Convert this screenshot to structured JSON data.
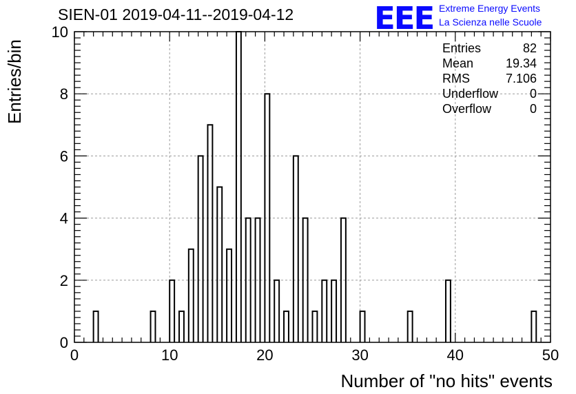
{
  "title": "SIEN-01 2019-04-11--2019-04-12",
  "logo": {
    "mark": "EEE",
    "line1": "Extreme Energy Events",
    "line2": "La Scienza nelle Scuole",
    "color": "#0a0aff"
  },
  "stats": [
    {
      "label": "Entries",
      "value": "82"
    },
    {
      "label": "Mean",
      "value": "19.34"
    },
    {
      "label": "RMS",
      "value": "7.106"
    },
    {
      "label": "Underflow",
      "value": "0"
    },
    {
      "label": "Overflow",
      "value": "0"
    }
  ],
  "chart_data": {
    "type": "bar",
    "title": "SIEN-01 2019-04-11--2019-04-12",
    "xlabel": "Number of \"no hits\" events",
    "ylabel": "Entries/bin",
    "xlim": [
      0,
      50
    ],
    "ylim": [
      0,
      10
    ],
    "bin_width": 0.5,
    "xticks": [
      0,
      10,
      20,
      30,
      40,
      50
    ],
    "yticks": [
      0,
      2,
      4,
      6,
      8,
      10
    ],
    "grid": true,
    "bins": [
      {
        "x": 2,
        "value": 1
      },
      {
        "x": 8,
        "value": 1
      },
      {
        "x": 10,
        "value": 2
      },
      {
        "x": 11,
        "value": 1
      },
      {
        "x": 12,
        "value": 3
      },
      {
        "x": 13,
        "value": 6
      },
      {
        "x": 14,
        "value": 7
      },
      {
        "x": 15,
        "value": 5
      },
      {
        "x": 16,
        "value": 3
      },
      {
        "x": 17,
        "value": 10
      },
      {
        "x": 18,
        "value": 4
      },
      {
        "x": 19,
        "value": 4
      },
      {
        "x": 20,
        "value": 8
      },
      {
        "x": 21,
        "value": 2
      },
      {
        "x": 22,
        "value": 1
      },
      {
        "x": 23,
        "value": 6
      },
      {
        "x": 24,
        "value": 4
      },
      {
        "x": 25,
        "value": 1
      },
      {
        "x": 26,
        "value": 2
      },
      {
        "x": 27,
        "value": 2
      },
      {
        "x": 28,
        "value": 4
      },
      {
        "x": 30,
        "value": 1
      },
      {
        "x": 35,
        "value": 1
      },
      {
        "x": 39,
        "value": 2
      },
      {
        "x": 48,
        "value": 1
      }
    ]
  }
}
